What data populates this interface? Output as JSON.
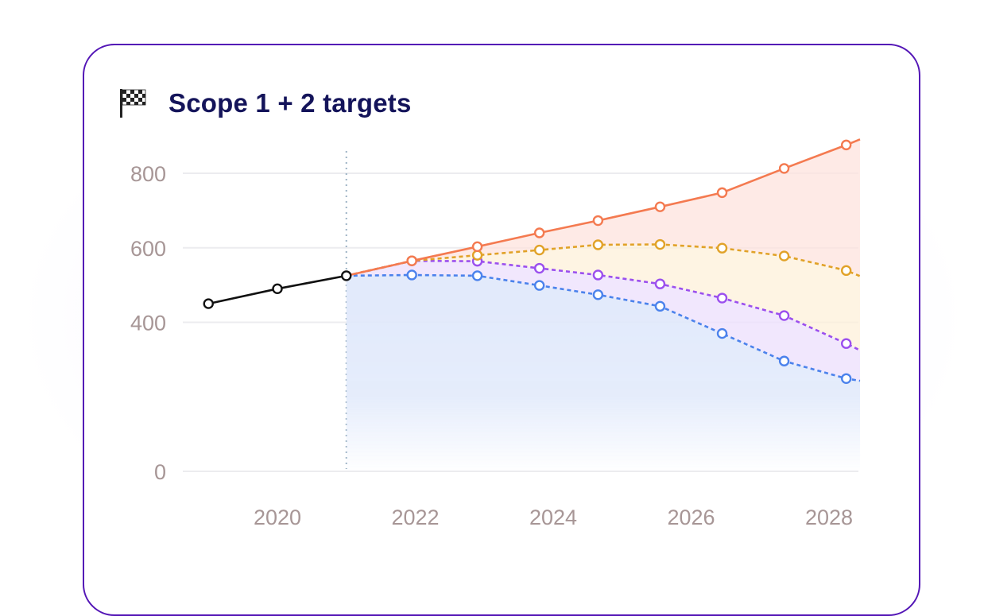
{
  "card": {
    "title": "Scope 1 + 2 targets",
    "icon": "checkered-flag-icon"
  },
  "chart_data": {
    "type": "line",
    "title": "Scope 1 + 2 targets",
    "xlabel": "",
    "ylabel": "",
    "xlim": [
      2018.7,
      2028.45
    ],
    "ylim": [
      0,
      900
    ],
    "x_ticks": [
      "2020",
      "2022",
      "2024",
      "2026",
      "2028"
    ],
    "x_tick_values": [
      2020,
      2022,
      2024,
      2026,
      2028
    ],
    "y_ticks": [
      "0",
      "400",
      "600",
      "800"
    ],
    "y_tick_values": [
      0,
      400,
      600,
      800
    ],
    "grid": true,
    "forecast_start": 2021,
    "series": [
      {
        "role": "actual",
        "color": "#111111",
        "style": "solid",
        "x": [
          2019.0,
          2020.0,
          2021.0
        ],
        "values": [
          450,
          490,
          525
        ]
      },
      {
        "role": "upper",
        "color": "#f47a50",
        "style": "solid",
        "fill": "#fde3dd",
        "x": [
          2021.0,
          2021.95,
          2022.9,
          2023.8,
          2024.65,
          2025.55,
          2026.45,
          2027.35,
          2028.25
        ],
        "values": [
          525,
          565,
          603,
          640,
          673,
          710,
          748,
          813,
          876
        ],
        "extend_to": {
          "x": 2028.45,
          "value": 891
        }
      },
      {
        "role": "mid-high",
        "color": "#e1a228",
        "style": "dashed",
        "fill": "#fdf0da",
        "x": [
          2021.95,
          2022.9,
          2023.8,
          2024.65,
          2025.55,
          2026.45,
          2027.35,
          2028.25
        ],
        "values": [
          565,
          580,
          594,
          608,
          609,
          599,
          578,
          539
        ],
        "extend_to": {
          "x": 2028.45,
          "value": 524
        }
      },
      {
        "role": "mid-low",
        "color": "#9b4fee",
        "style": "dashed",
        "fill": "#ede1fc",
        "x": [
          2021.95,
          2022.9,
          2023.8,
          2024.65,
          2025.55,
          2026.45,
          2027.35,
          2028.25
        ],
        "values": [
          565,
          564,
          545,
          527,
          503,
          465,
          418,
          343
        ],
        "extend_to": {
          "x": 2028.45,
          "value": 325
        }
      },
      {
        "role": "lower",
        "color": "#4b82ec",
        "style": "dashed",
        "fill": "#dfe8fb",
        "x": [
          2021.0,
          2021.95,
          2022.9,
          2023.8,
          2024.65,
          2025.55,
          2026.45,
          2027.35,
          2028.25
        ],
        "values": [
          525,
          527,
          525,
          499,
          474,
          443,
          370,
          296,
          249
        ],
        "extend_to": {
          "x": 2028.45,
          "value": 243
        }
      }
    ]
  }
}
